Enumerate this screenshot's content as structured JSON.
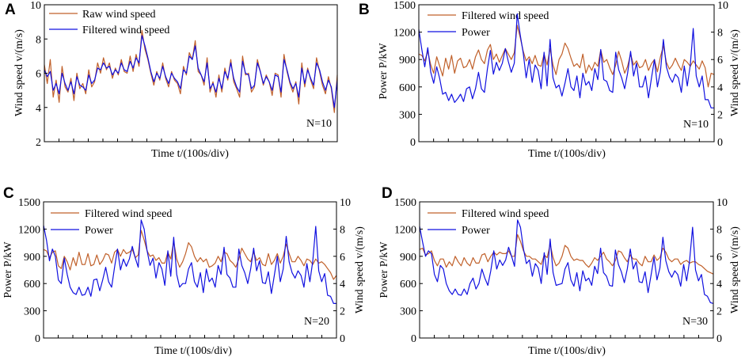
{
  "colors": {
    "raw": "#c0602a",
    "filtered_orange": "#c0602a",
    "blue": "#1010e0"
  },
  "chart_data": [
    {
      "panel": "A",
      "type": "line",
      "title": "",
      "xlabel": "Time t/(100s/div)",
      "ylabel_left": "Wind speed v/(m/s)",
      "ylabel_right": "",
      "yleft_ticks": [
        "2",
        "4",
        "6",
        "8",
        "10"
      ],
      "yright_ticks": [],
      "ylim": [
        2,
        10
      ],
      "xlim": [
        0,
        100
      ],
      "x_divisions": 20,
      "annotation": "N=10",
      "legend": [
        "Raw wind speed",
        "Filtered wind speed"
      ],
      "series": [
        {
          "name": "Raw wind speed",
          "axis": "left",
          "color": "#c0602a",
          "values": [
            6.5,
            5.4,
            6.8,
            4.6,
            5.6,
            4.3,
            6.4,
            5.2,
            4.9,
            5.7,
            4.4,
            6.0,
            5.1,
            5.4,
            4.8,
            6.2,
            5.2,
            5.5,
            6.6,
            6.0,
            6.9,
            6.2,
            6.6,
            5.7,
            6.3,
            5.9,
            6.8,
            6.1,
            6.0,
            7.0,
            6.1,
            7.1,
            6.4,
            8.5,
            7.4,
            6.8,
            6.0,
            5.3,
            6.1,
            5.6,
            6.6,
            5.7,
            5.2,
            6.1,
            5.6,
            5.4,
            4.8,
            6.4,
            5.9,
            7.2,
            6.8,
            7.9,
            6.1,
            5.9,
            5.3,
            6.9,
            4.9,
            5.5,
            4.6,
            5.9,
            4.9,
            6.3,
            5.6,
            6.8,
            5.5,
            5.1,
            4.6,
            7.0,
            5.9,
            6.0,
            4.9,
            5.2,
            6.8,
            6.1,
            5.3,
            5.9,
            5.5,
            4.7,
            6.0,
            5.9,
            4.6,
            7.1,
            6.1,
            5.4,
            4.9,
            5.5,
            4.2,
            6.6,
            5.2,
            6.3,
            5.6,
            5.1,
            6.9,
            6.1,
            5.3,
            4.8,
            5.8,
            5.1,
            3.7,
            5.9
          ]
        },
        {
          "name": "Filtered wind speed",
          "axis": "left",
          "color": "#1010e0",
          "values": [
            6.2,
            5.8,
            6.1,
            5.0,
            5.4,
            4.8,
            6.0,
            5.4,
            5.0,
            5.5,
            4.8,
            5.8,
            5.3,
            5.2,
            5.0,
            5.9,
            5.4,
            5.6,
            6.3,
            6.2,
            6.6,
            6.3,
            6.4,
            5.9,
            6.2,
            6.0,
            6.6,
            6.2,
            6.1,
            6.7,
            6.3,
            6.9,
            6.6,
            8.2,
            7.6,
            6.9,
            6.1,
            5.5,
            6.0,
            5.7,
            6.4,
            5.8,
            5.4,
            6.0,
            5.7,
            5.5,
            5.1,
            6.2,
            6.0,
            7.0,
            6.8,
            7.6,
            6.3,
            5.9,
            5.5,
            6.6,
            5.1,
            5.4,
            4.9,
            5.7,
            5.1,
            6.1,
            5.7,
            6.6,
            5.7,
            5.2,
            4.9,
            6.7,
            6.0,
            5.9,
            5.1,
            5.3,
            6.6,
            6.1,
            5.4,
            5.8,
            5.5,
            5.0,
            5.9,
            5.8,
            4.9,
            6.8,
            6.2,
            5.5,
            5.1,
            5.4,
            4.6,
            6.3,
            5.4,
            6.2,
            5.7,
            5.3,
            6.6,
            6.2,
            5.5,
            5.0,
            5.6,
            5.2,
            4.0,
            5.6
          ]
        }
      ]
    },
    {
      "panel": "B",
      "type": "line",
      "title": "",
      "xlabel": "Time t/(100s/div)",
      "ylabel_left": "Power P/kW",
      "ylabel_right": "Wind speed v/(m/s)",
      "yleft_ticks": [
        "0",
        "300",
        "600",
        "900",
        "1200",
        "1500"
      ],
      "yright_ticks": [
        "0",
        "2",
        "4",
        "6",
        "8",
        "10"
      ],
      "ylim_left": [
        0,
        1500
      ],
      "ylim_right": [
        0,
        10
      ],
      "xlim": [
        0,
        100
      ],
      "x_divisions": 20,
      "annotation": "N=10",
      "legend": [
        "Filtered wind speed",
        "Power"
      ],
      "series": [
        {
          "name": "Filtered wind speed",
          "axis": "right",
          "color": "#c0602a",
          "values": [
            6.4,
            6.3,
            5.9,
            6.6,
            5.6,
            5.0,
            6.2,
            5.5,
            4.8,
            6.1,
            5.3,
            6.3,
            5.0,
            5.9,
            6.1,
            5.4,
            5.5,
            6.0,
            5.3,
            6.2,
            6.7,
            6.0,
            5.7,
            6.7,
            7.1,
            6.0,
            6.4,
            5.8,
            6.3,
            6.8,
            6.4,
            6.0,
            6.5,
            8.5,
            7.6,
            6.6,
            5.9,
            6.2,
            5.7,
            6.3,
            5.6,
            5.5,
            6.4,
            5.6,
            6.8,
            5.6,
            4.9,
            6.0,
            6.4,
            7.2,
            6.8,
            6.1,
            5.5,
            5.7,
            5.4,
            6.4,
            5.0,
            5.6,
            5.2,
            5.8,
            5.5,
            6.7,
            5.8,
            6.0,
            5.4,
            4.9,
            5.6,
            6.6,
            5.9,
            5.0,
            5.5,
            6.4,
            5.6,
            5.9,
            5.4,
            5.5,
            6.0,
            5.2,
            5.7,
            6.0,
            5.1,
            6.2,
            7.0,
            5.8,
            5.3,
            5.6,
            6.1,
            5.6,
            5.2,
            6.0,
            5.8,
            5.5,
            5.9,
            5.6,
            5.3,
            5.9,
            5.4,
            4.0,
            5.0,
            4.9
          ]
        },
        {
          "name": "Power",
          "axis": "left",
          "color": "#1010e0",
          "values": [
            1230,
            1010,
            820,
            1030,
            760,
            640,
            820,
            690,
            520,
            540,
            450,
            520,
            430,
            470,
            520,
            440,
            580,
            600,
            470,
            580,
            760,
            580,
            540,
            800,
            1000,
            740,
            870,
            780,
            860,
            1020,
            880,
            760,
            860,
            1400,
            1170,
            970,
            700,
            900,
            650,
            840,
            780,
            580,
            980,
            610,
            1120,
            700,
            590,
            620,
            500,
            640,
            800,
            600,
            560,
            720,
            480,
            750,
            620,
            660,
            560,
            800,
            680,
            1010,
            680,
            660,
            560,
            540,
            980,
            790,
            700,
            580,
            750,
            990,
            720,
            860,
            600,
            600,
            720,
            480,
            700,
            900,
            600,
            770,
            1120,
            820,
            710,
            650,
            740,
            700,
            540,
            830,
            610,
            840,
            1240,
            720,
            600,
            720,
            460,
            460,
            370,
            370
          ]
        }
      ]
    },
    {
      "panel": "C",
      "type": "line",
      "title": "",
      "xlabel": "Time t/(100s/div)",
      "ylabel_left": "Power P/kW",
      "ylabel_right": "Wind speed v/(m/s)",
      "yleft_ticks": [
        "0",
        "300",
        "600",
        "900",
        "1200",
        "1500"
      ],
      "yright_ticks": [
        "0",
        "2",
        "4",
        "6",
        "8",
        "10"
      ],
      "ylim_left": [
        0,
        1500
      ],
      "ylim_right": [
        0,
        10
      ],
      "xlim": [
        0,
        100
      ],
      "x_divisions": 20,
      "annotation": "N=20",
      "legend": [
        "Filtered wind speed",
        "Power"
      ],
      "series": [
        {
          "name": "Filtered wind speed",
          "axis": "right",
          "color": "#c0602a",
          "values": [
            6.5,
            6.4,
            5.9,
            6.3,
            6.4,
            5.3,
            5.1,
            6.0,
            5.6,
            5.0,
            5.9,
            5.3,
            6.3,
            5.4,
            5.4,
            6.2,
            5.3,
            5.4,
            6.1,
            5.4,
            5.7,
            6.2,
            6.1,
            5.5,
            6.3,
            6.5,
            6.0,
            6.5,
            6.2,
            6.3,
            6.5,
            5.9,
            6.1,
            7.9,
            7.2,
            6.4,
            6.0,
            6.1,
            5.7,
            5.9,
            5.5,
            5.5,
            6.3,
            5.8,
            7.1,
            5.8,
            5.2,
            5.6,
            6.2,
            7.0,
            6.7,
            6.0,
            5.6,
            5.9,
            5.6,
            5.8,
            5.2,
            5.3,
            5.5,
            6.0,
            5.6,
            6.3,
            6.2,
            5.7,
            5.5,
            5.2,
            5.8,
            6.6,
            6.2,
            5.8,
            5.6,
            6.3,
            5.7,
            5.9,
            5.4,
            5.3,
            6.2,
            5.4,
            5.7,
            6.2,
            5.5,
            6.0,
            6.9,
            6.2,
            5.6,
            5.6,
            6.0,
            5.7,
            5.3,
            5.8,
            5.7,
            5.4,
            5.8,
            5.5,
            5.6,
            5.4,
            5.1,
            4.8,
            4.3,
            4.6
          ]
        },
        {
          "name": "Power",
          "axis": "left",
          "color": "#1010e0",
          "values": [
            1240,
            1080,
            850,
            980,
            900,
            640,
            600,
            880,
            700,
            560,
            500,
            480,
            560,
            470,
            480,
            560,
            460,
            640,
            650,
            520,
            640,
            780,
            620,
            560,
            780,
            980,
            750,
            870,
            790,
            870,
            1010,
            880,
            780,
            1300,
            1200,
            960,
            800,
            880,
            660,
            830,
            760,
            580,
            960,
            680,
            1110,
            700,
            560,
            600,
            600,
            760,
            830,
            620,
            560,
            720,
            500,
            760,
            620,
            660,
            560,
            800,
            700,
            1000,
            700,
            660,
            560,
            560,
            980,
            800,
            720,
            600,
            760,
            990,
            740,
            850,
            610,
            600,
            730,
            490,
            690,
            900,
            620,
            760,
            1120,
            840,
            720,
            660,
            740,
            690,
            560,
            820,
            620,
            850,
            1230,
            740,
            620,
            710,
            470,
            460,
            380,
            380
          ]
        }
      ]
    },
    {
      "panel": "D",
      "type": "line",
      "title": "",
      "xlabel": "Time t/(100s/div)",
      "ylabel_left": "Power P/kW",
      "ylabel_right": "Wind speed v/(m/s)",
      "yleft_ticks": [
        "0",
        "300",
        "600",
        "900",
        "1200",
        "1500"
      ],
      "yright_ticks": [
        "0",
        "2",
        "4",
        "6",
        "8",
        "10"
      ],
      "ylim_left": [
        0,
        1500
      ],
      "ylim_right": [
        0,
        10
      ],
      "xlim": [
        0,
        100
      ],
      "x_divisions": 20,
      "annotation": "N=30",
      "legend": [
        "Filtered wind speed",
        "Power"
      ],
      "series": [
        {
          "name": "Filtered wind speed",
          "axis": "right",
          "color": "#c0602a",
          "values": [
            6.5,
            6.6,
            6.1,
            6.2,
            6.4,
            5.7,
            5.3,
            5.8,
            5.8,
            5.2,
            5.6,
            5.3,
            6.0,
            5.6,
            5.3,
            5.9,
            5.5,
            5.3,
            5.9,
            5.5,
            5.5,
            6.1,
            6.2,
            5.6,
            6.0,
            6.3,
            6.1,
            6.3,
            6.2,
            6.2,
            6.4,
            6.0,
            6.0,
            7.6,
            7.1,
            6.4,
            6.0,
            6.0,
            5.8,
            5.8,
            5.6,
            5.4,
            6.1,
            5.9,
            6.9,
            5.9,
            5.3,
            5.5,
            6.0,
            6.8,
            6.6,
            6.0,
            5.7,
            5.8,
            5.7,
            5.7,
            5.4,
            5.2,
            5.5,
            5.9,
            5.7,
            6.0,
            6.3,
            5.8,
            5.6,
            5.3,
            5.7,
            6.4,
            6.3,
            5.9,
            5.6,
            6.1,
            5.8,
            5.8,
            5.5,
            5.3,
            6.0,
            5.6,
            5.6,
            6.1,
            5.7,
            5.9,
            6.6,
            6.3,
            5.8,
            5.6,
            5.8,
            5.8,
            5.4,
            5.6,
            5.7,
            5.5,
            5.6,
            5.6,
            5.4,
            5.3,
            5.1,
            4.9,
            4.8,
            4.7
          ]
        },
        {
          "name": "Power",
          "axis": "left",
          "color": "#1010e0",
          "values": [
            1230,
            1060,
            900,
            960,
            930,
            700,
            620,
            800,
            760,
            600,
            520,
            480,
            540,
            480,
            470,
            540,
            480,
            600,
            660,
            540,
            600,
            760,
            660,
            580,
            740,
            960,
            760,
            860,
            800,
            860,
            1000,
            900,
            790,
            1300,
            1220,
            980,
            820,
            860,
            680,
            820,
            770,
            600,
            940,
            700,
            1090,
            720,
            580,
            590,
            600,
            760,
            830,
            640,
            570,
            720,
            520,
            740,
            630,
            660,
            580,
            790,
            710,
            990,
            720,
            680,
            580,
            570,
            970,
            810,
            730,
            610,
            760,
            980,
            760,
            840,
            620,
            610,
            730,
            500,
            690,
            890,
            640,
            770,
            1110,
            850,
            730,
            670,
            740,
            700,
            570,
            810,
            630,
            850,
            1220,
            750,
            630,
            700,
            480,
            460,
            390,
            380
          ]
        }
      ]
    }
  ]
}
